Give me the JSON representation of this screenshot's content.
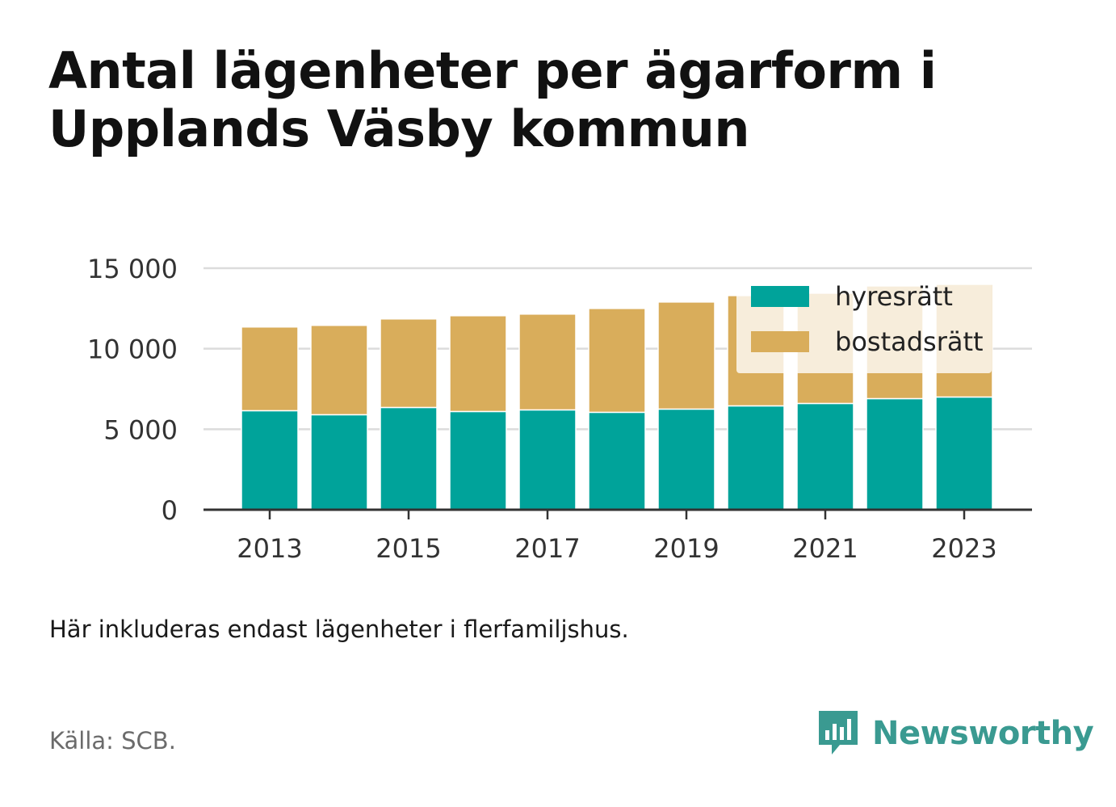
{
  "title": "Antal lägenheter per ägarform i Upplands Väsby kommun",
  "note": "Här inkluderas endast lägenheter i flerfamiljshus.",
  "source": "Källa: SCB.",
  "brand": {
    "name": "Newsworthy",
    "icon": "newsworthy-logo-icon",
    "color": "#3a9a91"
  },
  "chart_data": {
    "type": "bar",
    "stacked": true,
    "x": [
      2013,
      2014,
      2015,
      2016,
      2017,
      2018,
      2019,
      2020,
      2021,
      2022,
      2023
    ],
    "x_tick_labels": [
      "2013",
      "2015",
      "2017",
      "2019",
      "2021",
      "2023"
    ],
    "series": [
      {
        "name": "hyresrätt",
        "color": "#00a39a",
        "values": [
          6150,
          5900,
          6350,
          6100,
          6200,
          6050,
          6250,
          6450,
          6600,
          6900,
          7000
        ]
      },
      {
        "name": "bostadsrätt",
        "color": "#d9ad5b",
        "values": [
          5200,
          5550,
          5500,
          5950,
          5950,
          6450,
          6650,
          6850,
          6850,
          7000,
          7000
        ]
      }
    ],
    "ylim": [
      0,
      15000
    ],
    "y_ticks": [
      0,
      5000,
      10000,
      15000
    ],
    "y_tick_labels": [
      "0",
      "5 000",
      "10 000",
      "15 000"
    ],
    "grid": true,
    "legend": "top-right"
  }
}
